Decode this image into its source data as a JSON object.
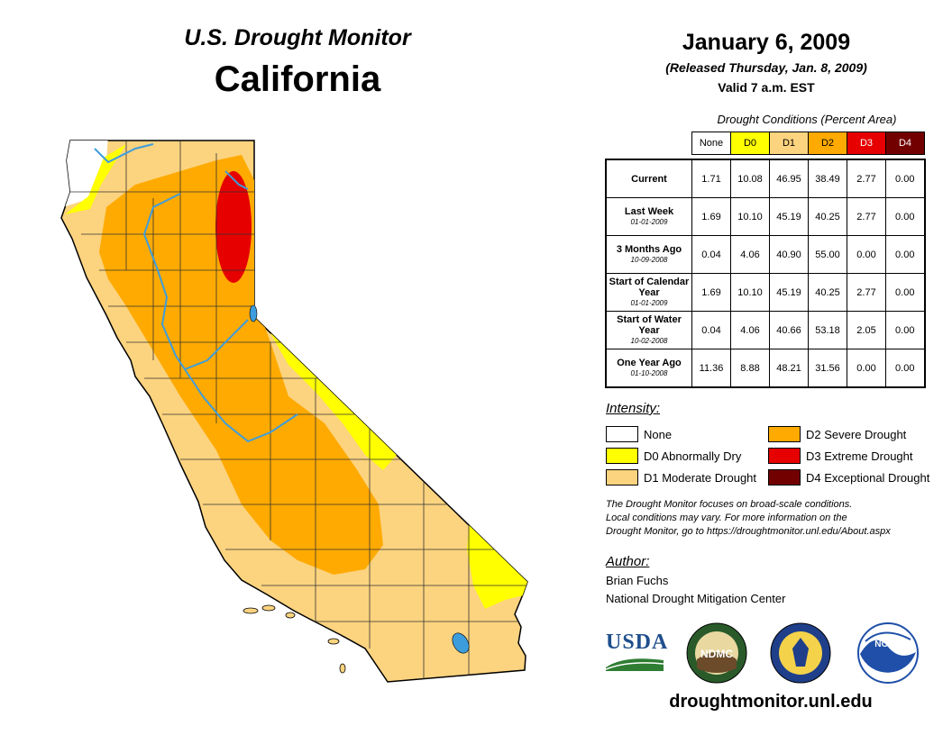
{
  "header": {
    "program": "U.S. Drought Monitor",
    "state": "California",
    "date": "January 6, 2009",
    "released": "(Released Thursday, Jan. 8, 2009)",
    "valid": "Valid 7 a.m. EST"
  },
  "table": {
    "caption": "Drought Conditions (Percent Area)",
    "columns": [
      {
        "label": "None",
        "color": "#ffffff",
        "text_color": "#000000"
      },
      {
        "label": "D0",
        "color": "#ffff00",
        "text_color": "#000000"
      },
      {
        "label": "D1",
        "color": "#fcd37f",
        "text_color": "#000000"
      },
      {
        "label": "D2",
        "color": "#ffaa00",
        "text_color": "#000000"
      },
      {
        "label": "D3",
        "color": "#e60000",
        "text_color": "#ffffff"
      },
      {
        "label": "D4",
        "color": "#730000",
        "text_color": "#ffffff"
      }
    ],
    "rows": [
      {
        "label": "Current",
        "date": "",
        "values": [
          "1.71",
          "10.08",
          "46.95",
          "38.49",
          "2.77",
          "0.00"
        ]
      },
      {
        "label": "Last Week",
        "date": "01-01-2009",
        "values": [
          "1.69",
          "10.10",
          "45.19",
          "40.25",
          "2.77",
          "0.00"
        ]
      },
      {
        "label": "3 Months Ago",
        "date": "10-09-2008",
        "values": [
          "0.04",
          "4.06",
          "40.90",
          "55.00",
          "0.00",
          "0.00"
        ]
      },
      {
        "label": "Start of Calendar Year",
        "date": "01-01-2009",
        "values": [
          "1.69",
          "10.10",
          "45.19",
          "40.25",
          "2.77",
          "0.00"
        ]
      },
      {
        "label": "Start of Water Year",
        "date": "10-02-2008",
        "values": [
          "0.04",
          "4.06",
          "40.66",
          "53.18",
          "2.05",
          "0.00"
        ]
      },
      {
        "label": "One Year Ago",
        "date": "01-10-2008",
        "values": [
          "11.36",
          "8.88",
          "48.21",
          "31.56",
          "0.00",
          "0.00"
        ]
      }
    ]
  },
  "legend": {
    "title": "Intensity:",
    "items": [
      {
        "label": "None",
        "color": "#ffffff"
      },
      {
        "label": "D0 Abnormally Dry",
        "color": "#ffff00"
      },
      {
        "label": "D1 Moderate Drought",
        "color": "#fcd37f"
      },
      {
        "label": "D2 Severe Drought",
        "color": "#ffaa00"
      },
      {
        "label": "D3 Extreme Drought",
        "color": "#e60000"
      },
      {
        "label": "D4 Exceptional Drought",
        "color": "#730000"
      }
    ]
  },
  "note": {
    "line1": "The Drought Monitor focuses on broad-scale conditions.",
    "line2": "Local conditions may vary. For more information on the",
    "line3": "Drought Monitor, go to https://droughtmonitor.unl.edu/About.aspx"
  },
  "author": {
    "title": "Author:",
    "name": "Brian Fuchs",
    "org": "National Drought Mitigation Center"
  },
  "logos": {
    "usda": "USDA",
    "ndmc": "NDMC",
    "noaa": "NOAA"
  },
  "footer": {
    "url": "droughtmonitor.unl.edu"
  },
  "colors": {
    "none": "#ffffff",
    "d0": "#ffff00",
    "d1": "#fcd37f",
    "d2": "#ffaa00",
    "d3": "#e60000",
    "d4": "#730000",
    "water": "#3d9ddc"
  }
}
